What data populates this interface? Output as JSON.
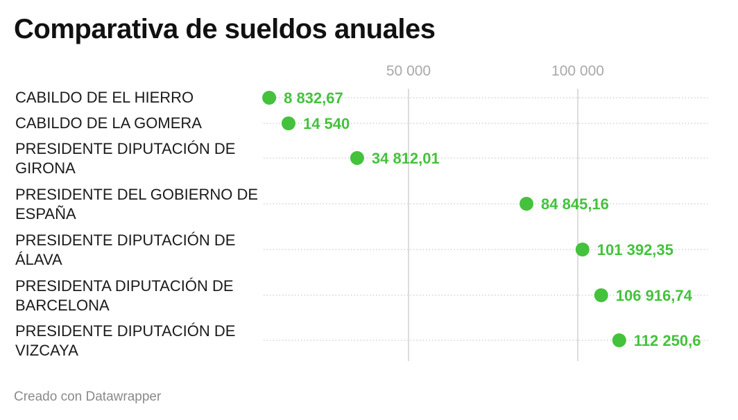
{
  "title": "Comparativa de sueldos anuales",
  "footer": "Creado con Datawrapper",
  "colors": {
    "dot": "#44c23c",
    "gridline": "#dcdcdc",
    "rowline": "#c8c8c8"
  },
  "chart_data": {
    "type": "scatter",
    "title": "Comparativa de sueldos anuales",
    "xlabel": "",
    "ylabel": "",
    "xlim": [
      0,
      120000
    ],
    "grid": true,
    "ticks": [
      {
        "value": 50000,
        "label": "50 000"
      },
      {
        "value": 100000,
        "label": "100 000"
      }
    ],
    "rows": [
      {
        "label_lines": [
          "CABILDO DE EL HIERRO"
        ],
        "value": 8832.67,
        "value_label": "8 832,67"
      },
      {
        "label_lines": [
          "CABILDO DE LA GOMERA"
        ],
        "value": 14540,
        "value_label": "14 540"
      },
      {
        "label_lines": [
          "PRESIDENTE DIPUTACIÓN DE",
          "GIRONA"
        ],
        "value": 34812.01,
        "value_label": "34 812,01"
      },
      {
        "label_lines": [
          "PRESIDENTE DEL GOBIERNO DE",
          "ESPAÑA"
        ],
        "value": 84845.16,
        "value_label": "84 845,16"
      },
      {
        "label_lines": [
          "PRESIDENTE DIPUTACIÓN DE",
          "ÁLAVA"
        ],
        "value": 101392.35,
        "value_label": "101 392,35"
      },
      {
        "label_lines": [
          "PRESIDENTA DIPUTACIÓN DE",
          "BARCELONA"
        ],
        "value": 106916.74,
        "value_label": "106 916,74"
      },
      {
        "label_lines": [
          "PRESIDENTE DIPUTACIÓN DE",
          "VIZCAYA"
        ],
        "value": 112250.6,
        "value_label": "112 250,6"
      }
    ]
  }
}
